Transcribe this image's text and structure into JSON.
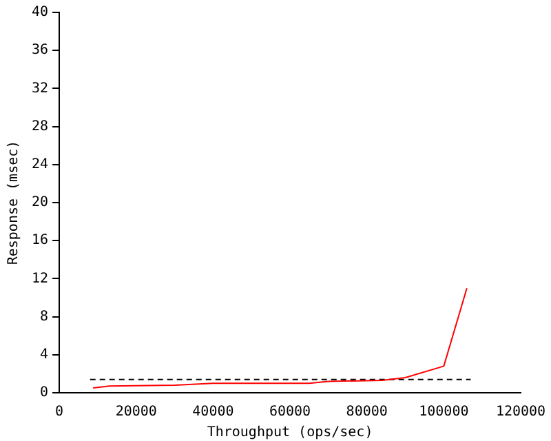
{
  "chart_data": {
    "type": "line",
    "xlabel": "Throughput (ops/sec)",
    "ylabel": "Response (msec)",
    "xlim": [
      0,
      120000
    ],
    "xticks": [
      0,
      20000,
      40000,
      60000,
      80000,
      100000,
      120000
    ],
    "ylim": [
      0,
      40
    ],
    "yticks": [
      0,
      4,
      8,
      12,
      16,
      20,
      24,
      28,
      32,
      36,
      40
    ],
    "grid": false,
    "legend": false,
    "marker": "none",
    "series": [
      {
        "color": "#ff0000",
        "x": [
          8800,
          13000,
          30000,
          40000,
          65000,
          70000,
          84000,
          90000,
          100000,
          106000
        ],
        "values": [
          0.5,
          0.7,
          0.8,
          1,
          1,
          1.2,
          1.3,
          1.6,
          2.8,
          11
        ],
        "line_style": "solid"
      },
      {
        "color": "#000000",
        "x": [
          8000,
          107000
        ],
        "values": [
          1.4,
          1.4
        ],
        "line_style": "dashed"
      }
    ]
  }
}
